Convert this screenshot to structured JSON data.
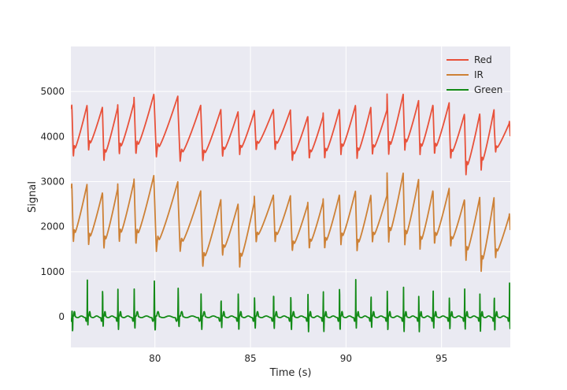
{
  "chart_data": {
    "type": "line",
    "xlabel": "Time (s)",
    "ylabel": "Signal",
    "xlim": [
      75.6,
      98.6
    ],
    "ylim": [
      -680,
      6000
    ],
    "grid": true,
    "legend_placement": "top-right",
    "x_ticks": [
      80,
      85,
      90,
      95
    ],
    "x_tick_labels": [
      "80",
      "85",
      "90",
      "95"
    ],
    "y_ticks": [
      0,
      1000,
      2000,
      3000,
      4000,
      5000
    ],
    "y_tick_labels": [
      "0",
      "1000",
      "2000",
      "3000",
      "4000",
      "5000"
    ],
    "beat_times": [
      75.65,
      76.45,
      77.25,
      78.05,
      78.9,
      79.95,
      81.2,
      82.4,
      83.45,
      84.35,
      85.2,
      86.2,
      87.1,
      88.0,
      88.8,
      89.65,
      90.5,
      91.3,
      92.15,
      93.0,
      93.8,
      94.55,
      95.4,
      96.2,
      97.0,
      97.75,
      98.55
    ],
    "series": [
      {
        "name": "Red",
        "color": "#e8513a",
        "peaks": [
          4700,
          4650,
          4650,
          4750,
          4950,
          4900,
          4700,
          4600,
          4550,
          4550,
          4600,
          4600,
          4450,
          4450,
          4600,
          4700,
          4650,
          4600,
          4950,
          4800,
          4700,
          4750,
          4500,
          4500,
          4600,
          4300,
          4350
        ],
        "troughs": [
          3550,
          3700,
          3450,
          3600,
          3600,
          3550,
          3450,
          3450,
          3550,
          3600,
          3700,
          3700,
          3450,
          3500,
          3500,
          3600,
          3500,
          3600,
          3600,
          3700,
          3600,
          3600,
          3500,
          3150,
          3250,
          3650,
          3800
        ]
      },
      {
        "name": "IR",
        "color": "#cd8136",
        "peaks": [
          2950,
          2750,
          2850,
          3000,
          3150,
          3000,
          2800,
          2600,
          2500,
          2550,
          2700,
          2700,
          2500,
          2550,
          2700,
          2800,
          2700,
          2700,
          3200,
          3050,
          2800,
          2850,
          2600,
          2650,
          2650,
          2250,
          2300
        ],
        "troughs": [
          1650,
          1600,
          1500,
          1650,
          1600,
          1450,
          1450,
          1100,
          1350,
          1100,
          1650,
          1650,
          1450,
          1500,
          1500,
          1600,
          1450,
          1650,
          1650,
          1600,
          1500,
          1600,
          1550,
          1250,
          1000,
          1300,
          1700
        ]
      },
      {
        "name": "Green",
        "color": "#138a17",
        "peaks": [
          200,
          850,
          850,
          620,
          620,
          850,
          720,
          580,
          520,
          700,
          520,
          700,
          600,
          570,
          700,
          880,
          850,
          630,
          720,
          710,
          610,
          720,
          570,
          720,
          620,
          640,
          770
        ],
        "troughs": [
          -330,
          -180,
          -220,
          -280,
          -250,
          -300,
          -220,
          -280,
          -240,
          -300,
          -250,
          -260,
          -290,
          -330,
          -330,
          -300,
          -250,
          -240,
          -300,
          -330,
          -330,
          -250,
          -270,
          -280,
          -320,
          -320,
          -260
        ]
      }
    ]
  }
}
